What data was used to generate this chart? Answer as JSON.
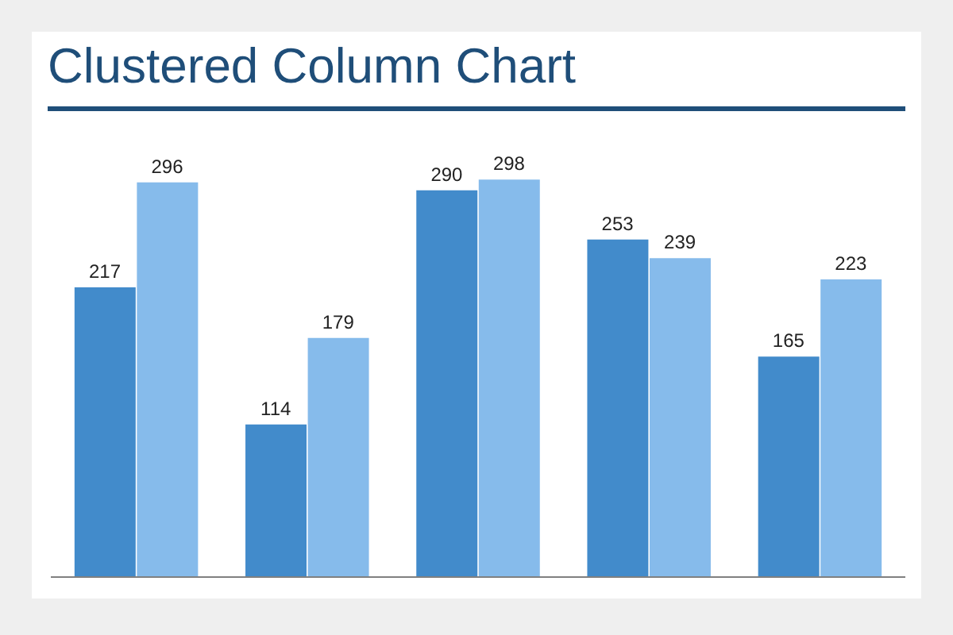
{
  "chart_data": {
    "type": "bar",
    "title": "Clustered Column Chart",
    "categories": [
      null,
      null,
      null,
      null,
      null
    ],
    "series": [
      {
        "color": "#428bcb",
        "values": [
          217,
          114,
          290,
          253,
          165
        ]
      },
      {
        "color": "#86bbeb",
        "values": [
          296,
          179,
          298,
          239,
          223
        ]
      }
    ],
    "data_labels": true,
    "grid": false,
    "legend": false
  }
}
